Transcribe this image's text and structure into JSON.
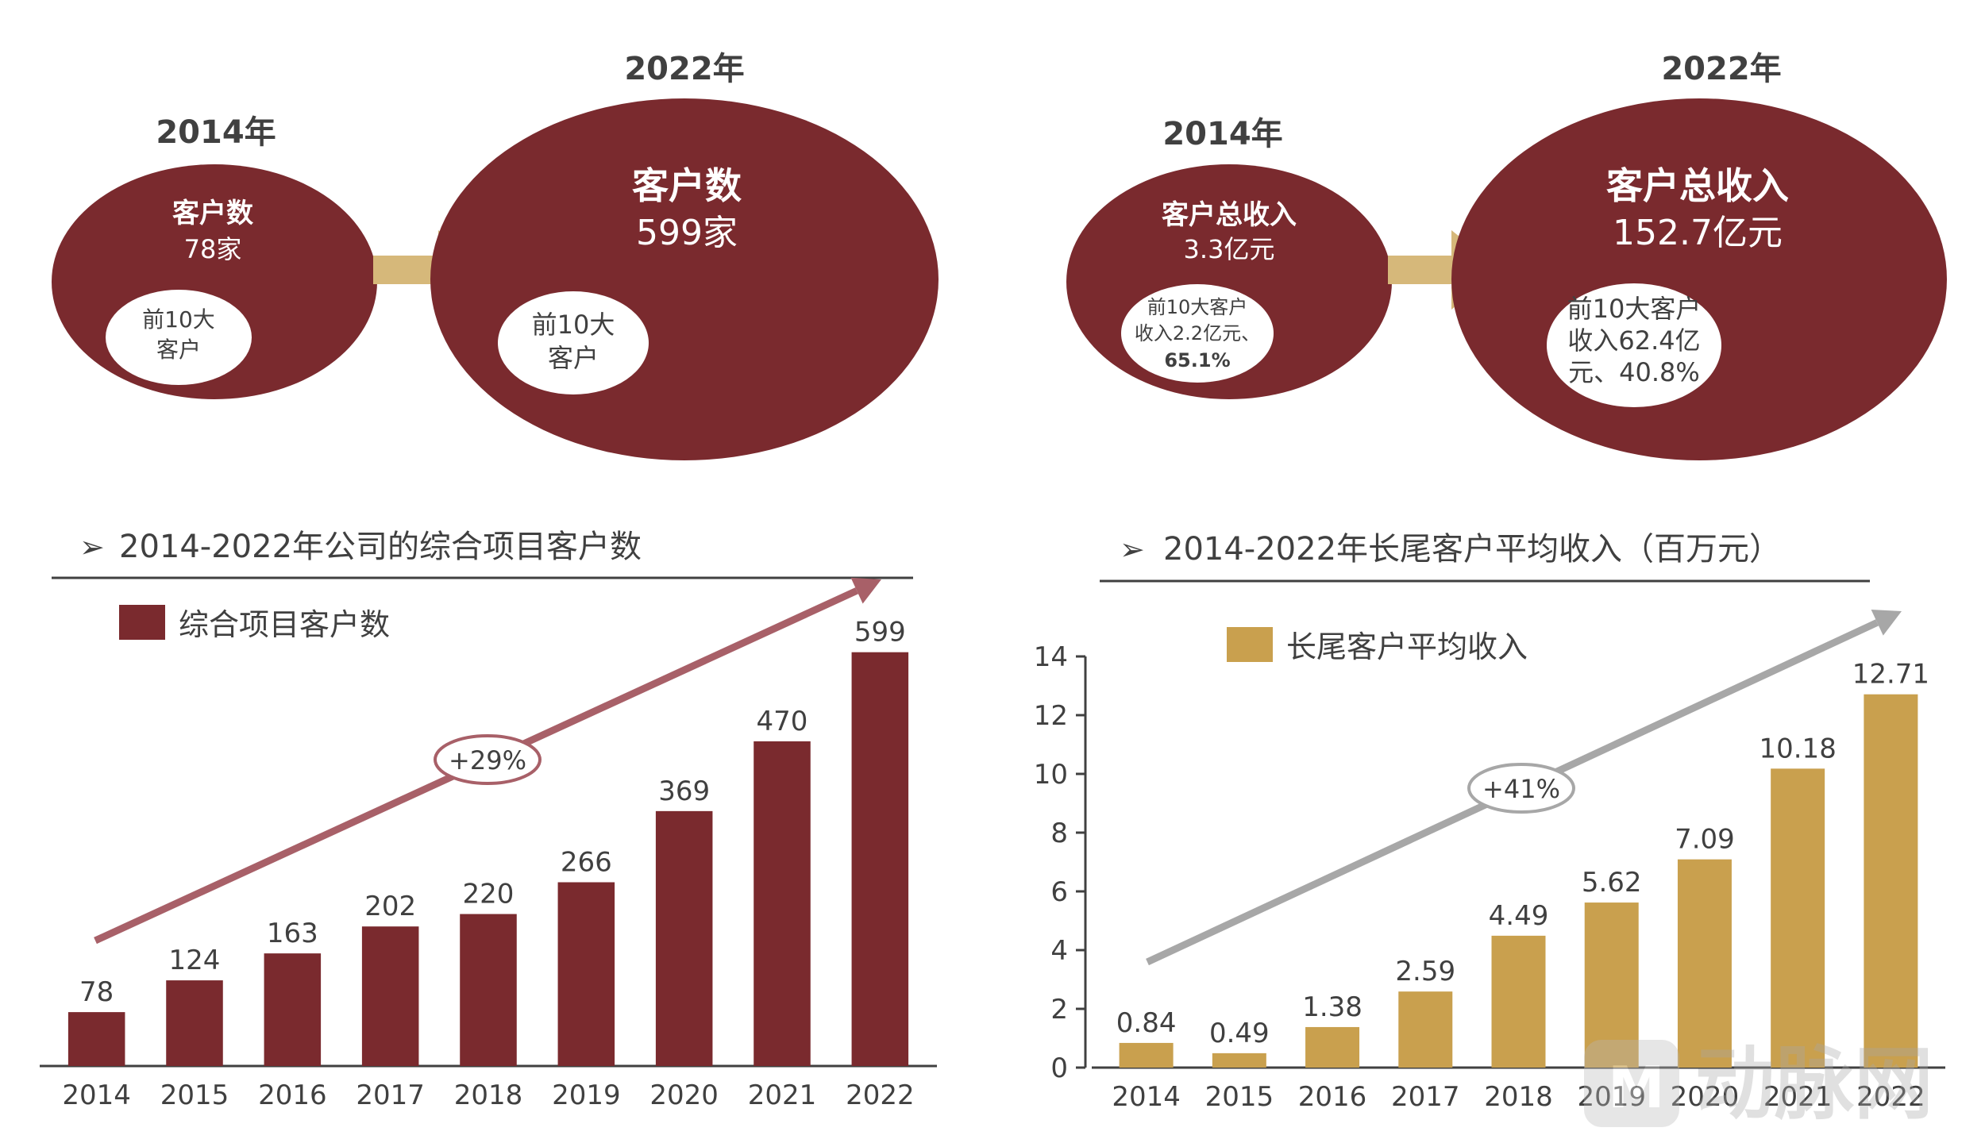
{
  "colors": {
    "maroon": "#7a2a2e",
    "gold": "#c9a04e",
    "arrow_gold": "#d6b87a",
    "trend_left": "#a86068",
    "trend_right": "#a7a7a7",
    "text": "#404040",
    "white": "#ffffff"
  },
  "top_left": {
    "small": {
      "year": "2014年",
      "title": "客户数",
      "value": "78家",
      "inner": [
        "前10大",
        "客户"
      ]
    },
    "big": {
      "year": "2022年",
      "title": "客户数",
      "value": "599家",
      "inner": [
        "前10大",
        "客户"
      ]
    }
  },
  "top_right": {
    "small": {
      "year": "2014年",
      "title": "客户总收入",
      "value": "3.3亿元",
      "inner": [
        "前10大客户",
        "收入2.2亿元、",
        "65.1%"
      ]
    },
    "big": {
      "year": "2022年",
      "title": "客户总收入",
      "value": "152.7亿元",
      "inner": [
        "前10大客户",
        "收入62.4亿",
        "元、40.8%"
      ]
    }
  },
  "chart_data": [
    {
      "type": "bar",
      "title": "2014-2022年公司的综合项目客户数",
      "legend": "综合项目客户数",
      "categories": [
        "2014",
        "2015",
        "2016",
        "2017",
        "2018",
        "2019",
        "2020",
        "2021",
        "2022"
      ],
      "values": [
        78,
        124,
        163,
        202,
        220,
        266,
        369,
        470,
        599
      ],
      "labels": [
        "78",
        "124",
        "163",
        "202",
        "220",
        "266",
        "369",
        "470",
        "599"
      ],
      "ylim": [
        0,
        640
      ],
      "growth_label": "+29%",
      "color": "#7a2a2e"
    },
    {
      "type": "bar",
      "title": "2014-2022年长尾客户平均收入（百万元）",
      "legend": "长尾客户平均收入",
      "categories": [
        "2014",
        "2015",
        "2016",
        "2017",
        "2018",
        "2019",
        "2020",
        "2021",
        "2022"
      ],
      "values": [
        0.84,
        0.49,
        1.38,
        2.59,
        4.49,
        5.62,
        7.09,
        10.18,
        12.71
      ],
      "labels": [
        "0.84",
        "0.49",
        "1.38",
        "2.59",
        "4.49",
        "5.62",
        "7.09",
        "10.18",
        "12.71"
      ],
      "ylim": [
        0,
        14
      ],
      "yticks": [
        "0",
        "2",
        "4",
        "6",
        "8",
        "10",
        "12",
        "14"
      ],
      "growth_label": "+41%",
      "color": "#c9a04e"
    }
  ],
  "watermark": {
    "text": "动脉网"
  }
}
